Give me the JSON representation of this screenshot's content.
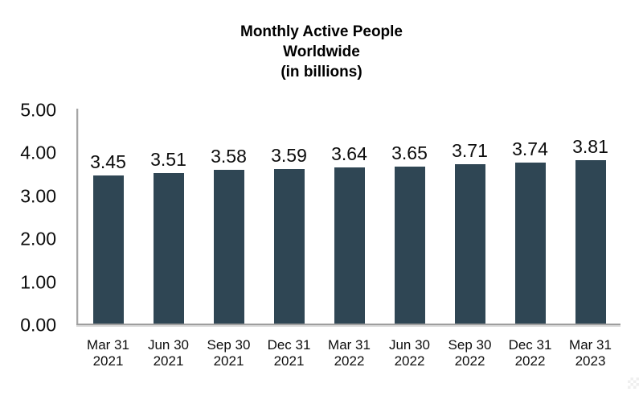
{
  "chart_data": {
    "type": "bar",
    "title": "Monthly Active People Worldwide (in billions)",
    "title_lines": [
      "Monthly Active People",
      "Worldwide",
      "(in billions)"
    ],
    "categories": [
      "Mar 31 2021",
      "Jun 30 2021",
      "Sep 30 2021",
      "Dec 31 2021",
      "Mar 31 2022",
      "Jun 30 2022",
      "Sep 30 2022",
      "Dec 31 2022",
      "Mar 31 2023"
    ],
    "category_lines": [
      [
        "Mar 31",
        "2021"
      ],
      [
        "Jun 30",
        "2021"
      ],
      [
        "Sep 30",
        "2021"
      ],
      [
        "Dec 31",
        "2021"
      ],
      [
        "Mar 31",
        "2022"
      ],
      [
        "Jun 30",
        "2022"
      ],
      [
        "Sep 30",
        "2022"
      ],
      [
        "Dec 31",
        "2022"
      ],
      [
        "Mar 31",
        "2023"
      ]
    ],
    "values": [
      3.45,
      3.51,
      3.58,
      3.59,
      3.64,
      3.65,
      3.71,
      3.74,
      3.81
    ],
    "value_labels": [
      "3.45",
      "3.51",
      "3.58",
      "3.59",
      "3.64",
      "3.65",
      "3.71",
      "3.74",
      "3.81"
    ],
    "xlabel": "",
    "ylabel": "",
    "y_ticks": [
      0,
      1,
      2,
      3,
      4,
      5
    ],
    "y_tick_labels": [
      "0.00",
      "1.00",
      "2.00",
      "3.00",
      "4.00",
      "5.00"
    ],
    "ylim": [
      0,
      5
    ],
    "grid": false,
    "legend": false,
    "bar_color": "#2f4654",
    "axis_color": "#a6a6a6",
    "text_color": "#0d0d0d"
  }
}
